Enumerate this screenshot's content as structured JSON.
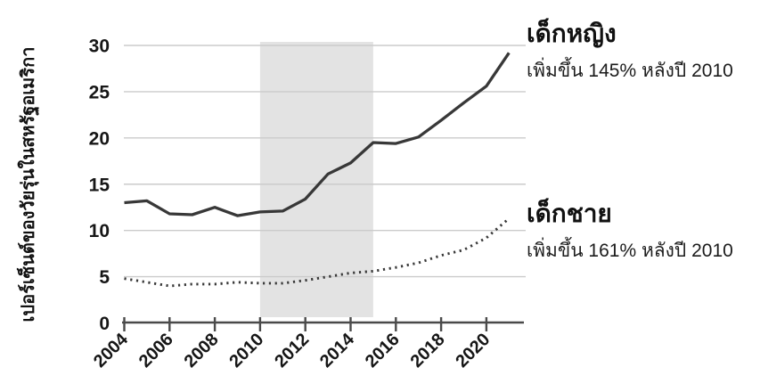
{
  "chart_data": {
    "type": "line",
    "y_axis_title": "เปอร์เซ็นต์ของวัยรุ่นในสหรัฐอเมริกา",
    "x": [
      2004,
      2005,
      2006,
      2007,
      2008,
      2009,
      2010,
      2011,
      2012,
      2013,
      2014,
      2015,
      2016,
      2017,
      2018,
      2019,
      2020,
      2021
    ],
    "series": [
      {
        "key": "girls",
        "name": "เด็กหญิง",
        "style": "solid",
        "values": [
          13.0,
          13.2,
          11.8,
          11.7,
          12.5,
          11.6,
          12.0,
          12.1,
          13.4,
          16.1,
          17.3,
          19.5,
          19.4,
          20.1,
          21.9,
          23.8,
          25.6,
          29.2
        ]
      },
      {
        "key": "boys",
        "name": "เด็กชาย",
        "style": "dotted",
        "values": [
          4.8,
          4.4,
          4.0,
          4.2,
          4.2,
          4.4,
          4.3,
          4.3,
          4.6,
          5.0,
          5.4,
          5.6,
          6.0,
          6.5,
          7.3,
          7.9,
          9.2,
          11.3
        ]
      }
    ],
    "x_ticks": [
      2004,
      2006,
      2008,
      2010,
      2012,
      2014,
      2016,
      2018,
      2020
    ],
    "y_ticks": [
      0,
      5,
      10,
      15,
      20,
      25,
      30
    ],
    "ylim": [
      0,
      30
    ],
    "xlim": [
      2004,
      2021.6
    ],
    "grid": true,
    "legend_position": "right-annotations",
    "shaded_region": {
      "x_start": 2010,
      "x_end": 2015,
      "color": "#e3e3e3"
    },
    "colors": {
      "line": "#383838",
      "gridline": "#cbcbcb",
      "axis": "#4a4a4a",
      "tick_text": "#161616",
      "background": "#ffffff"
    }
  },
  "annotations": {
    "girls": {
      "title": "เด็กหญิง",
      "subtitle": "เพิ่มขึ้น 145% หลังปี 2010"
    },
    "boys": {
      "title": "เด็กชาย",
      "subtitle": "เพิ่มขึ้น 161% หลังปี 2010"
    }
  }
}
